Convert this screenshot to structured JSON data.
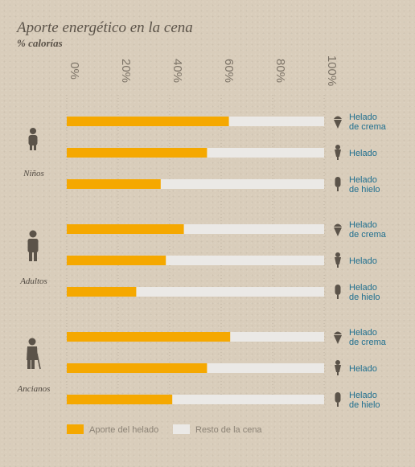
{
  "title": "Aporte energético en la cena",
  "subtitle": "% calorías",
  "colors": {
    "accent": "#f5a800",
    "rest": "#ebe9e6",
    "icon": "#5b5349",
    "product_text": "#1f6f8f"
  },
  "chart_data": {
    "type": "bar",
    "orientation": "horizontal",
    "stacked": true,
    "xlim": [
      0,
      100
    ],
    "xticks": [
      "0%",
      "20%",
      "40%",
      "60%",
      "80%",
      "100%"
    ],
    "groups": [
      {
        "name": "Niños",
        "icon": "child-icon",
        "bars": [
          {
            "product": [
              "Helado",
              "de crema"
            ],
            "icon": "ice-cream-cone-icon",
            "value": 63
          },
          {
            "product": [
              "Helado"
            ],
            "icon": "ice-cream-cup-icon",
            "value": 54.5
          },
          {
            "product": [
              "Helado",
              "de hielo"
            ],
            "icon": "popsicle-icon",
            "value": 36.5
          }
        ]
      },
      {
        "name": "Adultos",
        "icon": "adult-icon",
        "bars": [
          {
            "product": [
              "Helado",
              "de crema"
            ],
            "icon": "ice-cream-cone-icon",
            "value": 45.5
          },
          {
            "product": [
              "Helado"
            ],
            "icon": "ice-cream-cup-icon",
            "value": 38.5
          },
          {
            "product": [
              "Helado",
              "de hielo"
            ],
            "icon": "popsicle-icon",
            "value": 27
          }
        ]
      },
      {
        "name": "Ancianos",
        "icon": "elderly-icon",
        "bars": [
          {
            "product": [
              "Helado",
              "de crema"
            ],
            "icon": "ice-cream-cone-icon",
            "value": 63.5
          },
          {
            "product": [
              "Helado"
            ],
            "icon": "ice-cream-cup-icon",
            "value": 54.5
          },
          {
            "product": [
              "Helado",
              "de hielo"
            ],
            "icon": "popsicle-icon",
            "value": 41
          }
        ]
      }
    ],
    "legend": [
      {
        "label": "Aporte del helado",
        "color": "#f5a800"
      },
      {
        "label": "Resto de la cena",
        "color": "#ebe9e6"
      }
    ],
    "legend_position": "bottom-left"
  }
}
